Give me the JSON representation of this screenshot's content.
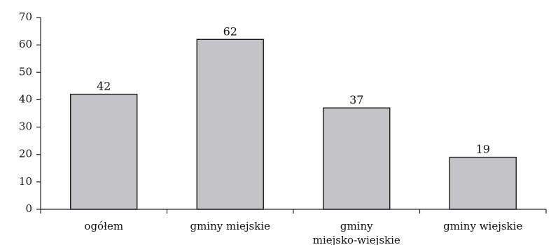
{
  "chart_data": {
    "type": "bar",
    "categories": [
      [
        "ogółem"
      ],
      [
        "gminy miejskie"
      ],
      [
        "gminy",
        "miejsko-wiejskie"
      ],
      [
        "gminy wiejskie"
      ]
    ],
    "values": [
      42,
      62,
      37,
      19
    ],
    "data_labels": [
      "42",
      "62",
      "37",
      "19"
    ],
    "yticks": [
      0,
      10,
      20,
      30,
      40,
      50,
      60,
      70
    ],
    "ytick_labels": [
      "0",
      "10",
      "20",
      "30",
      "40",
      "50",
      "60",
      "70"
    ],
    "ylim": [
      0,
      70
    ],
    "title": "",
    "xlabel": "",
    "ylabel": "",
    "grid": false,
    "bar_color": "#c4c4c8",
    "bar_edge_color": "#1a1a1a"
  }
}
